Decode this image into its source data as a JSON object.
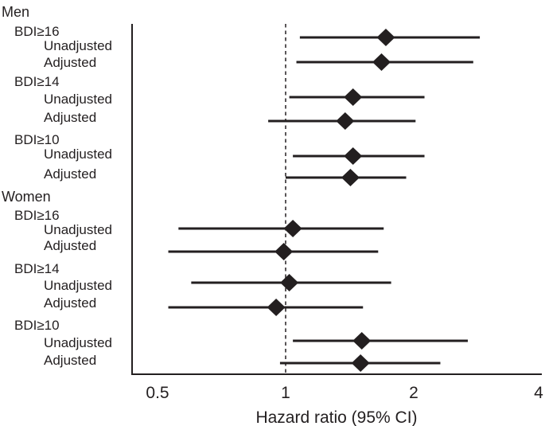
{
  "figure": {
    "kind": "forest-plot",
    "x_axis_title": "Hazard ratio (95% CI)"
  },
  "chart_data": {
    "type": "scatter",
    "subtype": "forest-plot",
    "xlabel": "Hazard ratio (95% CI)",
    "x_scale": "log2",
    "x_ticks": [
      0.5,
      1,
      2,
      4
    ],
    "xlim": [
      0.44,
      4
    ],
    "reference_line": 1.0,
    "grid": false,
    "ink_color": "#231f20",
    "rows": [
      {
        "type": "group",
        "label": "Men"
      },
      {
        "type": "subgroup",
        "label": "BDI≥16"
      },
      {
        "type": "estimate",
        "label": "Unadjusted",
        "hr": 1.72,
        "ci_low": 1.08,
        "ci_high": 2.86
      },
      {
        "type": "estimate",
        "label": "Adjusted",
        "hr": 1.68,
        "ci_low": 1.06,
        "ci_high": 2.76
      },
      {
        "type": "subgroup",
        "label": "BDI≥14"
      },
      {
        "type": "estimate",
        "label": "Unadjusted",
        "hr": 1.44,
        "ci_low": 1.02,
        "ci_high": 2.12
      },
      {
        "type": "estimate",
        "label": "Adjusted",
        "hr": 1.38,
        "ci_low": 0.91,
        "ci_high": 2.02
      },
      {
        "type": "subgroup",
        "label": "BDI≥10"
      },
      {
        "type": "estimate",
        "label": "Unadjusted",
        "hr": 1.44,
        "ci_low": 1.04,
        "ci_high": 2.12
      },
      {
        "type": "estimate",
        "label": "Adjusted",
        "hr": 1.42,
        "ci_low": 1.0,
        "ci_high": 1.92
      },
      {
        "type": "group",
        "label": "Women"
      },
      {
        "type": "subgroup",
        "label": "BDI≥16"
      },
      {
        "type": "estimate",
        "label": "Unadjusted",
        "hr": 1.04,
        "ci_low": 0.56,
        "ci_high": 1.7
      },
      {
        "type": "estimate",
        "label": "Adjusted",
        "hr": 0.99,
        "ci_low": 0.53,
        "ci_high": 1.65
      },
      {
        "type": "subgroup",
        "label": "BDI≥14"
      },
      {
        "type": "estimate",
        "label": "Unadjusted",
        "hr": 1.02,
        "ci_low": 0.6,
        "ci_high": 1.77
      },
      {
        "type": "estimate",
        "label": "Adjusted",
        "hr": 0.95,
        "ci_low": 0.53,
        "ci_high": 1.52
      },
      {
        "type": "subgroup",
        "label": "BDI≥10"
      },
      {
        "type": "estimate",
        "label": "Unadjusted",
        "hr": 1.51,
        "ci_low": 1.04,
        "ci_high": 2.68
      },
      {
        "type": "estimate",
        "label": "Adjusted",
        "hr": 1.5,
        "ci_low": 0.97,
        "ci_high": 2.31
      }
    ]
  }
}
